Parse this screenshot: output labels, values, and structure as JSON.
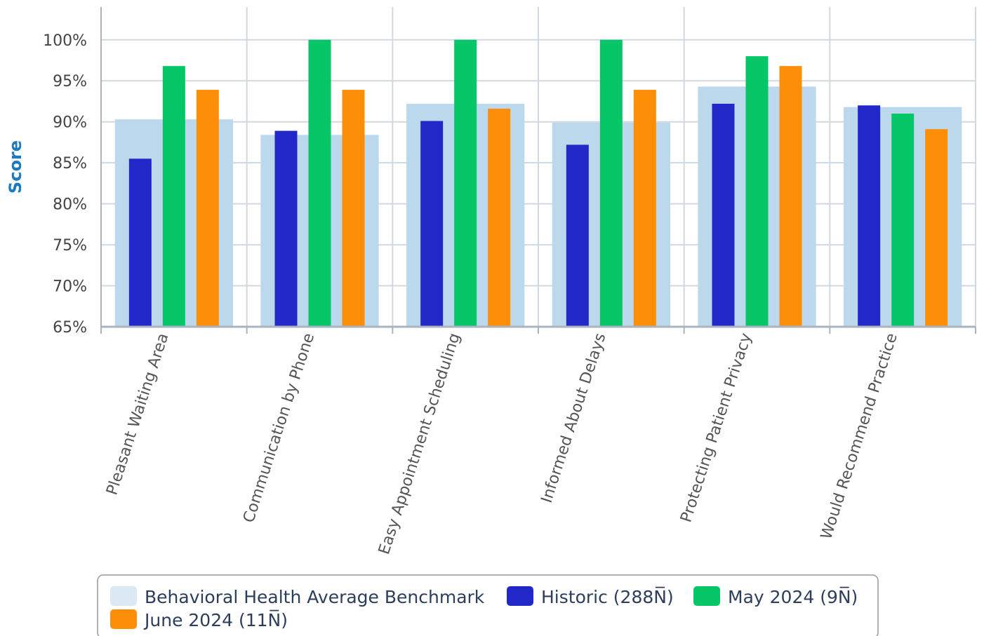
{
  "chart_data": {
    "type": "bar",
    "ylabel": "Score",
    "ylim": [
      65,
      104
    ],
    "y_ticks": [
      65,
      70,
      75,
      80,
      85,
      90,
      95,
      100
    ],
    "y_tick_labels": [
      "65%",
      "70%",
      "75%",
      "80%",
      "85%",
      "90%",
      "95%",
      "100%"
    ],
    "grid": true,
    "legend_position": "bottom",
    "categories": [
      "Pleasant Waiting Area",
      "Communication by Phone",
      "Easy Appointment Scheduling",
      "Informed About Delays",
      "Protecting Patient Privacy",
      "Would Recommend Practice"
    ],
    "benchmark": {
      "name": "Behavioral Health Average Benchmark",
      "color": "#bcd8ec",
      "values": [
        90.3,
        88.4,
        92.2,
        89.9,
        94.3,
        91.8
      ]
    },
    "series": [
      {
        "name": "Historic (288N̅)",
        "color": "#2228c7",
        "values": [
          85.5,
          88.9,
          90.1,
          87.2,
          92.2,
          92.0
        ]
      },
      {
        "name": "May 2024 (9N̅)",
        "color": "#06c668",
        "values": [
          96.8,
          100.0,
          100.0,
          100.0,
          98.0,
          91.0
        ]
      },
      {
        "name": "June 2024 (11N̅)",
        "color": "#fc8e08",
        "values": [
          93.9,
          93.9,
          91.6,
          93.9,
          96.8,
          89.1
        ]
      }
    ]
  }
}
